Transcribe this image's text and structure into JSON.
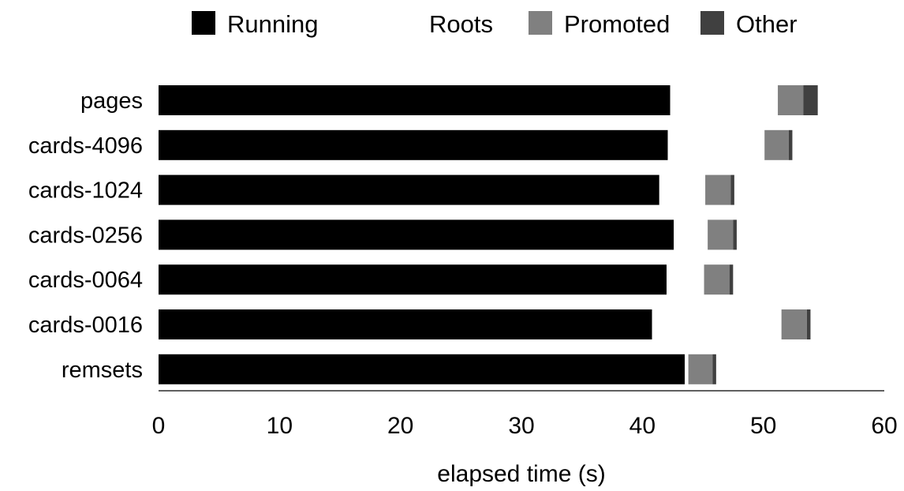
{
  "chart_data": {
    "type": "bar",
    "orientation": "horizontal",
    "stacked": true,
    "title": "",
    "xlabel": "elapsed time (s)",
    "ylabel": "",
    "xlim": [
      0,
      60
    ],
    "xticks": [
      "0",
      "10",
      "20",
      "30",
      "40",
      "50",
      "60"
    ],
    "grid": false,
    "legend_position": "top",
    "categories": [
      "pages",
      "cards-4096",
      "cards-1024",
      "cards-0256",
      "cards-0064",
      "cards-0016",
      "remsets"
    ],
    "series": [
      {
        "name": "Running",
        "color": "#000000",
        "values": [
          42.3,
          42.1,
          41.4,
          42.6,
          42.0,
          40.8,
          43.5
        ]
      },
      {
        "name": "Roots",
        "color": "#ffffff",
        "values": [
          8.9,
          8.0,
          3.8,
          2.8,
          3.1,
          10.7,
          0.3
        ]
      },
      {
        "name": "Promoted",
        "color": "#808080",
        "values": [
          2.1,
          2.0,
          2.1,
          2.1,
          2.1,
          2.1,
          2.0
        ]
      },
      {
        "name": "Other",
        "color": "#404040",
        "values": [
          1.2,
          0.3,
          0.3,
          0.3,
          0.3,
          0.3,
          0.3
        ]
      }
    ]
  }
}
